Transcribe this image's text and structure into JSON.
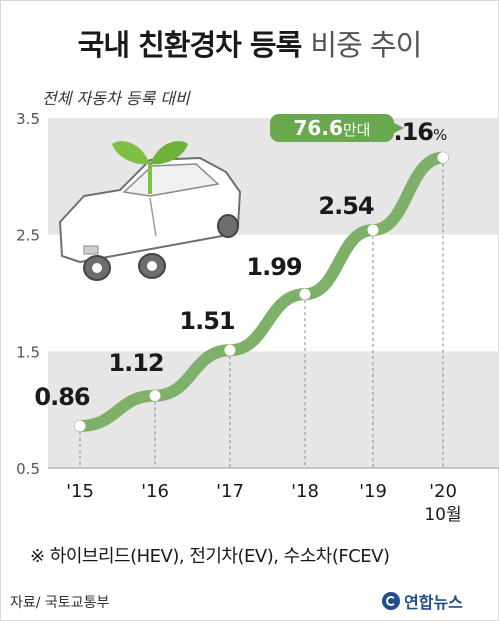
{
  "title": {
    "main": "국내 친환경차 등록",
    "sub": "비중 추이"
  },
  "note": "※ 하이브리드(HEV), 전기차(EV), 수소차(FCEV)",
  "source": "자료/ 국토교통부",
  "logo": "연합뉴스",
  "colors": {
    "line": "#7fb069",
    "callout": "#6aa84f",
    "band": "#e6e6e6"
  },
  "chart_data": {
    "type": "line",
    "title": "",
    "ylabel": "전체 자동차 등록 대비",
    "y_unit": "%",
    "ylim": [
      0.5,
      3.5
    ],
    "yticks": [
      "3.5",
      "2.5",
      "1.5",
      "0.5"
    ],
    "categories": [
      "'15",
      "'16",
      "'17",
      "'18",
      "'19",
      "'20"
    ],
    "category_note": "10월",
    "series": [
      {
        "values": [
          0.86,
          1.12,
          1.51,
          1.99,
          2.54,
          3.16
        ],
        "labels": [
          "0.86",
          "1.12",
          "1.51",
          "1.99",
          "2.54",
          "3.16"
        ]
      }
    ],
    "callout": {
      "number": "76.6",
      "unit": "만대"
    }
  }
}
